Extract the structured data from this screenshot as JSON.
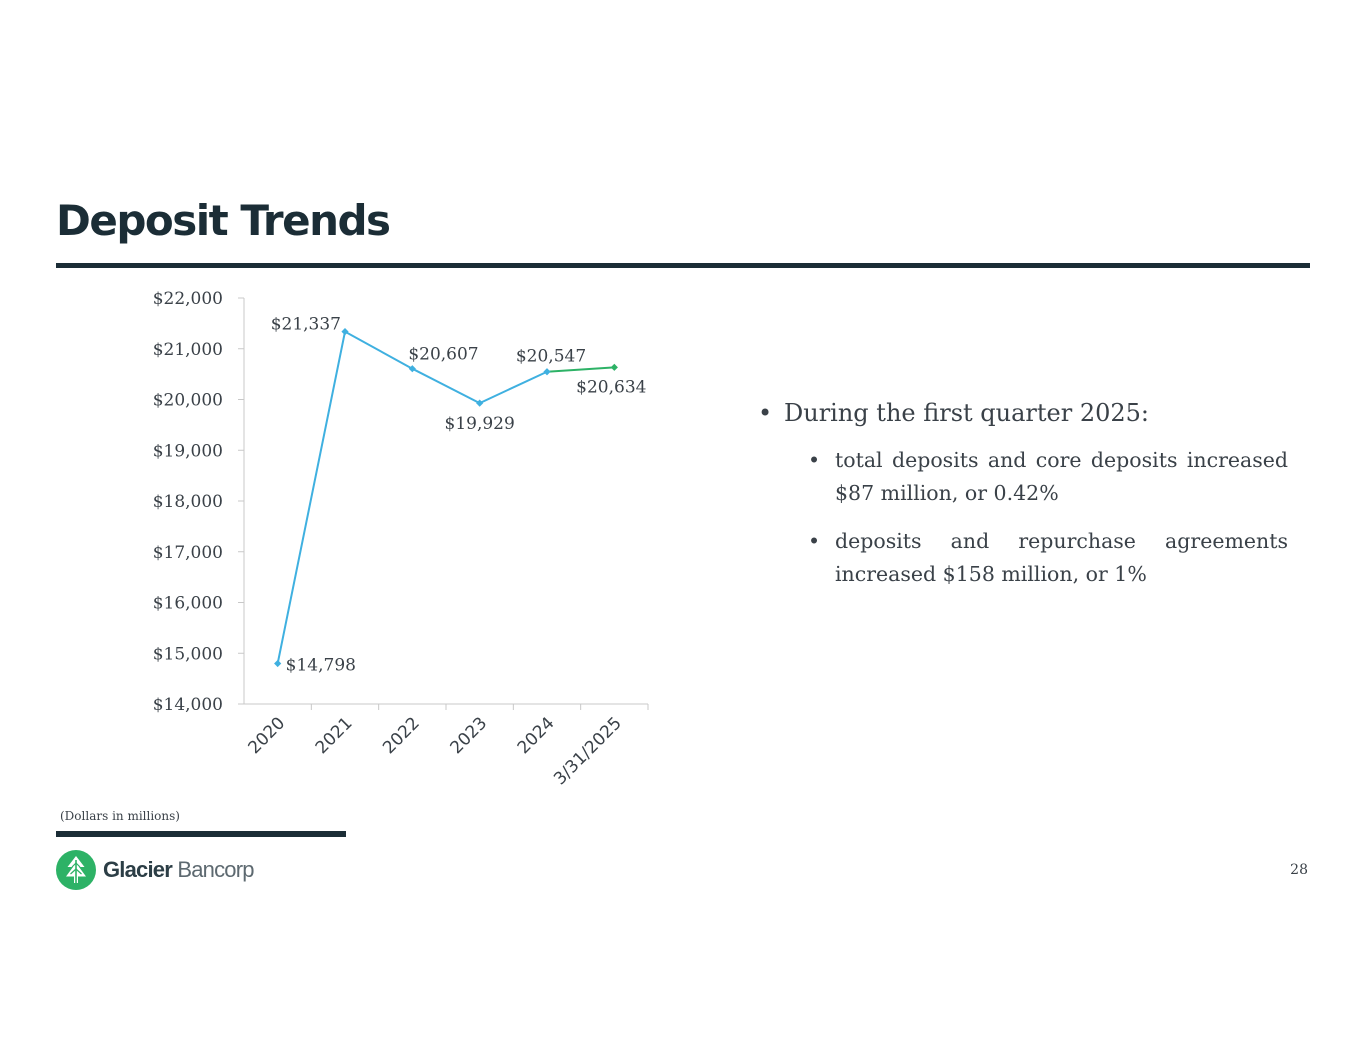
{
  "slide": {
    "title": "Deposit Trends",
    "footnote": "(Dollars in millions)",
    "page_number": "28"
  },
  "logo": {
    "name_bold": "Glacier",
    "name_light": "Bancorp",
    "brand_color": "#2db266",
    "icon": "glacier-tree-icon"
  },
  "bullets": {
    "main": "During the first quarter 2025:",
    "sub": [
      "total deposits and core deposits increased $87 million, or 0.42%",
      "deposits and repurchase agreements increased $158 million, or 1%"
    ]
  },
  "chart_data": {
    "type": "line",
    "categories": [
      "2020",
      "2021",
      "2022",
      "2023",
      "2024",
      "3/31/2025"
    ],
    "series": [
      {
        "values": [
          14798,
          21337,
          20607,
          19929,
          20547,
          null
        ],
        "labels": [
          "$14,798",
          "$21,337",
          "$20,607",
          "$19,929",
          "$20,547",
          null
        ],
        "color": "#3fb0e0"
      },
      {
        "values": [
          null,
          null,
          null,
          null,
          20547,
          20634
        ],
        "labels": [
          null,
          null,
          null,
          null,
          null,
          "$20,634"
        ],
        "color": "#2db266"
      }
    ],
    "y_ticks": [
      "$14,000",
      "$15,000",
      "$16,000",
      "$17,000",
      "$18,000",
      "$19,000",
      "$20,000",
      "$21,000",
      "$22,000"
    ],
    "ylim": [
      14000,
      22000
    ],
    "grid": false,
    "legend": "none"
  },
  "colors": {
    "title": "#1b2d36",
    "text": "#3a4148",
    "axis": "#c8c8c8"
  }
}
